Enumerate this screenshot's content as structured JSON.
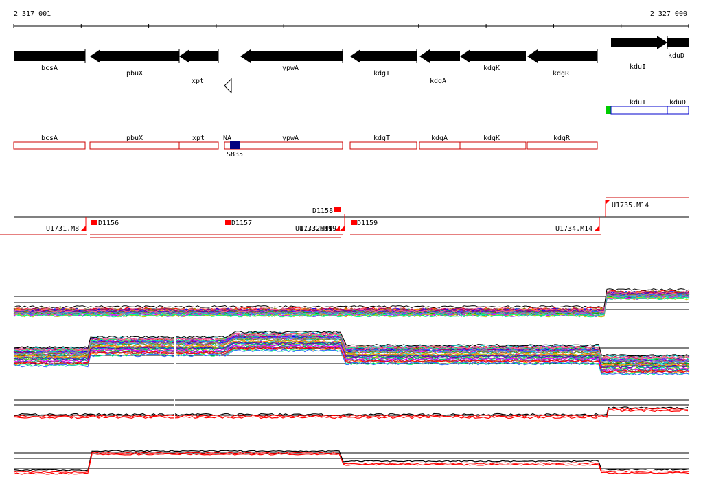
{
  "ruler": {
    "start_label": "2 317 001",
    "end_label": "2 327 000"
  },
  "genes": [
    {
      "label": "bcsA",
      "strand": "+"
    },
    {
      "label": "pbuX",
      "strand": "-"
    },
    {
      "label": "xpt",
      "strand": "-"
    },
    {
      "label": "ypwA",
      "strand": "-"
    },
    {
      "label": "kdgT",
      "strand": "-"
    },
    {
      "label": "kdgA",
      "strand": "-"
    },
    {
      "label": "kdgK",
      "strand": "-"
    },
    {
      "label": "kdgR",
      "strand": "-"
    },
    {
      "label": "kduI",
      "strand": "+"
    },
    {
      "label": "kduD",
      "strand": "+"
    }
  ],
  "terminator_marker": {
    "icon": "open-triangle-icon"
  },
  "transcripts_plus": [
    {
      "label": "kduI"
    },
    {
      "label": "kduD"
    }
  ],
  "transcripts_minus": [
    {
      "label": "bcsA"
    },
    {
      "label": "pbuX"
    },
    {
      "label": "xpt"
    },
    {
      "label": "NA"
    },
    {
      "label": "ypwA"
    },
    {
      "label": "kdgT"
    },
    {
      "label": "kdgA"
    },
    {
      "label": "kdgK"
    },
    {
      "label": "kdgR"
    }
  ],
  "small_rna": {
    "label": "S835",
    "color": "#000080"
  },
  "upshifts": [
    {
      "label": "U1731.M8"
    },
    {
      "label": "U1733.M19"
    },
    {
      "label": "U1732.M19"
    },
    {
      "label": "U1734.M14"
    },
    {
      "label": "U1735.M14"
    }
  ],
  "downshifts": [
    {
      "label": "D1156"
    },
    {
      "label": "D1157"
    },
    {
      "label": "D1158"
    },
    {
      "label": "D1159"
    }
  ],
  "colors": {
    "gene": "#000000",
    "transcript_minus": "#cc0000",
    "transcript_plus": "#0000cc",
    "marker": "#ff0000",
    "green": "#00cc00",
    "highlight": "#cc0000",
    "axis": "#000000"
  }
}
